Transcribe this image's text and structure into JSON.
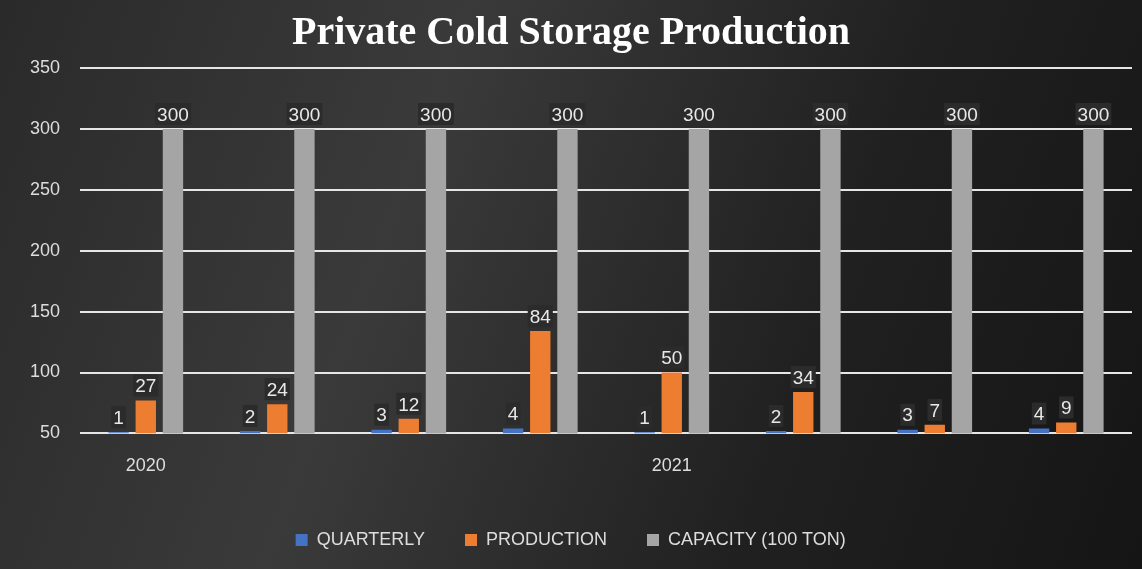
{
  "chart_data": {
    "type": "bar",
    "title": "Private Cold Storage Production",
    "categories": [
      "2020",
      null,
      null,
      null,
      "2021",
      null,
      null,
      null
    ],
    "series": [
      {
        "name": "QUARTERLY",
        "color": "#4472c4",
        "values": [
          1,
          2,
          3,
          4,
          1,
          2,
          3,
          4
        ],
        "base": [
          50,
          50,
          50,
          50,
          50,
          50,
          50,
          50
        ]
      },
      {
        "name": "PRODUCTION",
        "color": "#ed7d31",
        "values": [
          27,
          24,
          12,
          84,
          50,
          34,
          7,
          9
        ],
        "base": [
          50,
          50,
          50,
          50,
          50,
          50,
          50,
          50
        ]
      },
      {
        "name": "CAPACITY (100 TON)",
        "color": "#a5a5a5",
        "values": [
          300,
          300,
          300,
          300,
          300,
          300,
          300,
          300
        ]
      }
    ],
    "ylim": [
      50,
      350
    ],
    "yticks": [
      50,
      100,
      150,
      200,
      250,
      300,
      350
    ],
    "grid": "y",
    "legend": "bottom",
    "data_labels": true
  }
}
